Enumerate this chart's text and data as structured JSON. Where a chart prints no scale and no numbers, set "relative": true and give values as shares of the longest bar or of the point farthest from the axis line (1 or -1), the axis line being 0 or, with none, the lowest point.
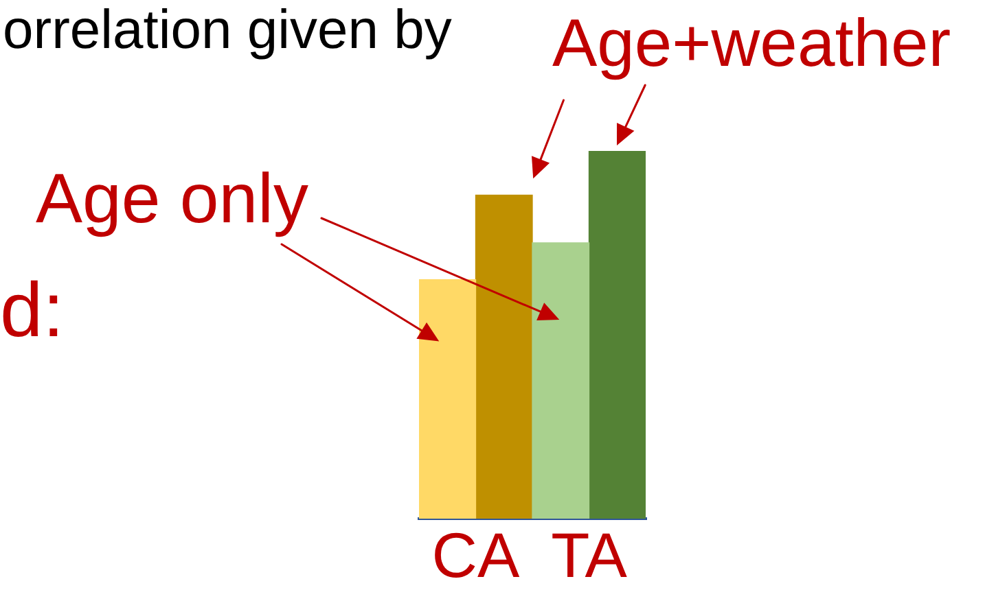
{
  "chart_data": {
    "type": "bar",
    "categories": [
      "CA",
      "TA"
    ],
    "relative": true,
    "series": [
      {
        "name": "Age only",
        "colors": [
          "#ffd966",
          "#a9d18e"
        ],
        "values": [
          0.65,
          0.75
        ]
      },
      {
        "name": "Age+weather",
        "colors": [
          "#bf9000",
          "#548235"
        ],
        "values": [
          0.88,
          1
        ]
      }
    ],
    "annotations": [
      "orrelation given by",
      "d:"
    ]
  }
}
